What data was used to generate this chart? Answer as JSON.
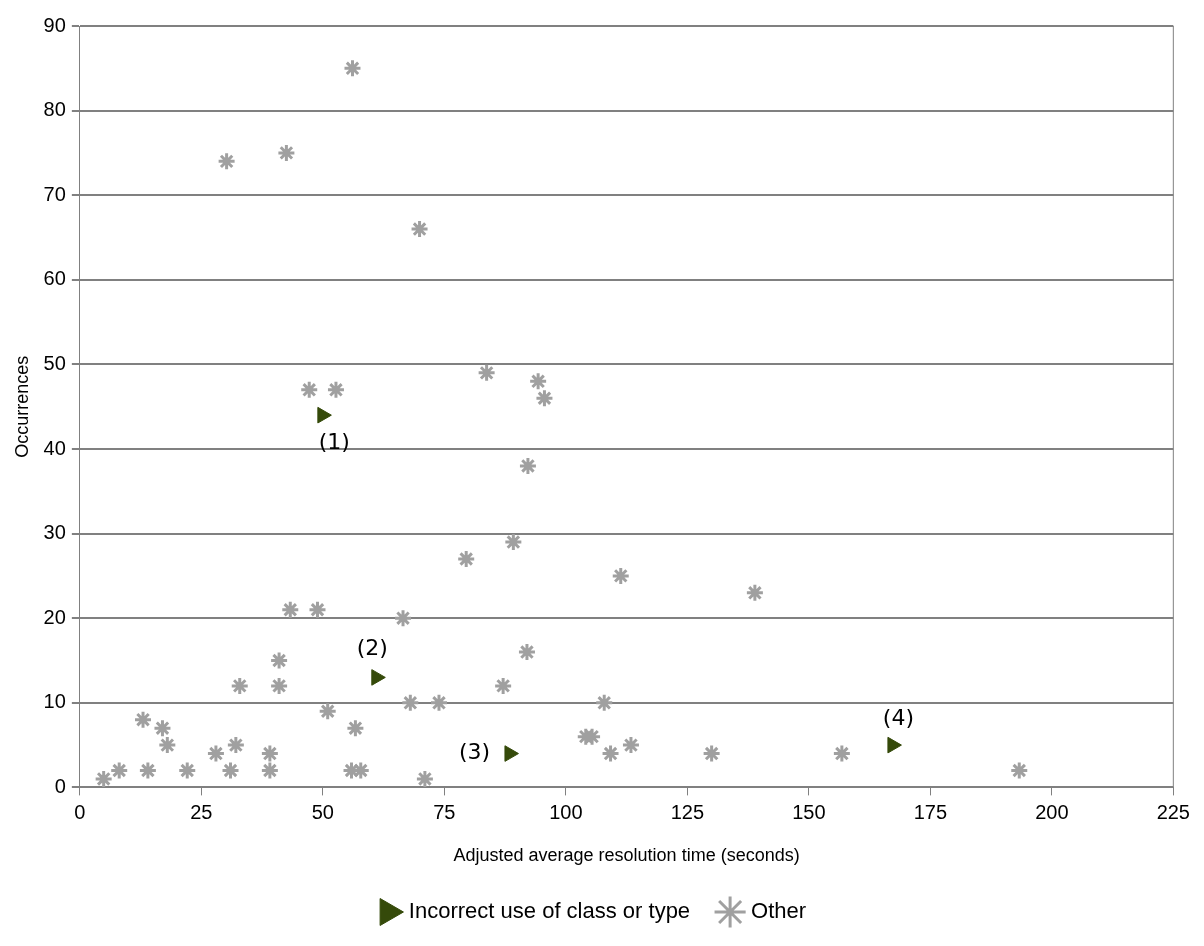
{
  "chart_data": {
    "type": "scatter",
    "xlabel": "Adjusted average resolution time (seconds)",
    "ylabel": "Occurrences",
    "xlim": [
      0,
      225
    ],
    "xticks": [
      0,
      25,
      50,
      75,
      100,
      125,
      150,
      175,
      200,
      225
    ],
    "ylim": [
      0,
      90
    ],
    "yticks": [
      0,
      10,
      20,
      30,
      40,
      50,
      60,
      70,
      80,
      90
    ],
    "grid": "y",
    "legend": "bottom",
    "series": [
      {
        "name": "Incorrect use of class or type",
        "color": "#354a0a",
        "marker": "triangle",
        "x": [
          49.9,
          61.0,
          88.4,
          167.2
        ],
        "values": [
          44,
          13,
          4,
          5
        ]
      },
      {
        "name": "Other",
        "color": "#a0a0a0",
        "marker": "cross",
        "x": [
          56.1,
          30.2,
          42.5,
          69.9,
          47.2,
          52.7,
          83.7,
          94.3,
          95.6,
          92.2,
          89.2,
          79.5,
          111.3,
          138.9,
          43.3,
          48.9,
          66.5,
          92.0,
          41.0,
          41.0,
          32.9,
          87.1,
          51.0,
          68.0,
          73.9,
          107.9,
          56.7,
          13.0,
          17.0,
          18.0,
          28.0,
          32.1,
          39.1,
          39.1,
          31.0,
          22.1,
          14.0,
          8.1,
          4.9,
          55.9,
          57.8,
          71.0,
          104.1,
          105.4,
          109.2,
          113.4,
          130.0,
          156.8,
          193.3
        ],
        "values": [
          85,
          74,
          75,
          66,
          47,
          47,
          49,
          48,
          46,
          38,
          29,
          27,
          25,
          23,
          21,
          21,
          20,
          16,
          15,
          12,
          12,
          12,
          9,
          10,
          10,
          10,
          7,
          8,
          7,
          5,
          4,
          5,
          4,
          2,
          2,
          2,
          2,
          2,
          1,
          2,
          2,
          1,
          6,
          6,
          4,
          5,
          4,
          4,
          2
        ]
      }
    ],
    "annotations": [
      {
        "text": "(1)",
        "x": 49.9,
        "y": 44
      },
      {
        "text": "(2)",
        "x": 61.0,
        "y": 13
      },
      {
        "text": "(3)",
        "x": 88.4,
        "y": 4
      },
      {
        "text": "(4)",
        "x": 167.2,
        "y": 5
      }
    ]
  }
}
